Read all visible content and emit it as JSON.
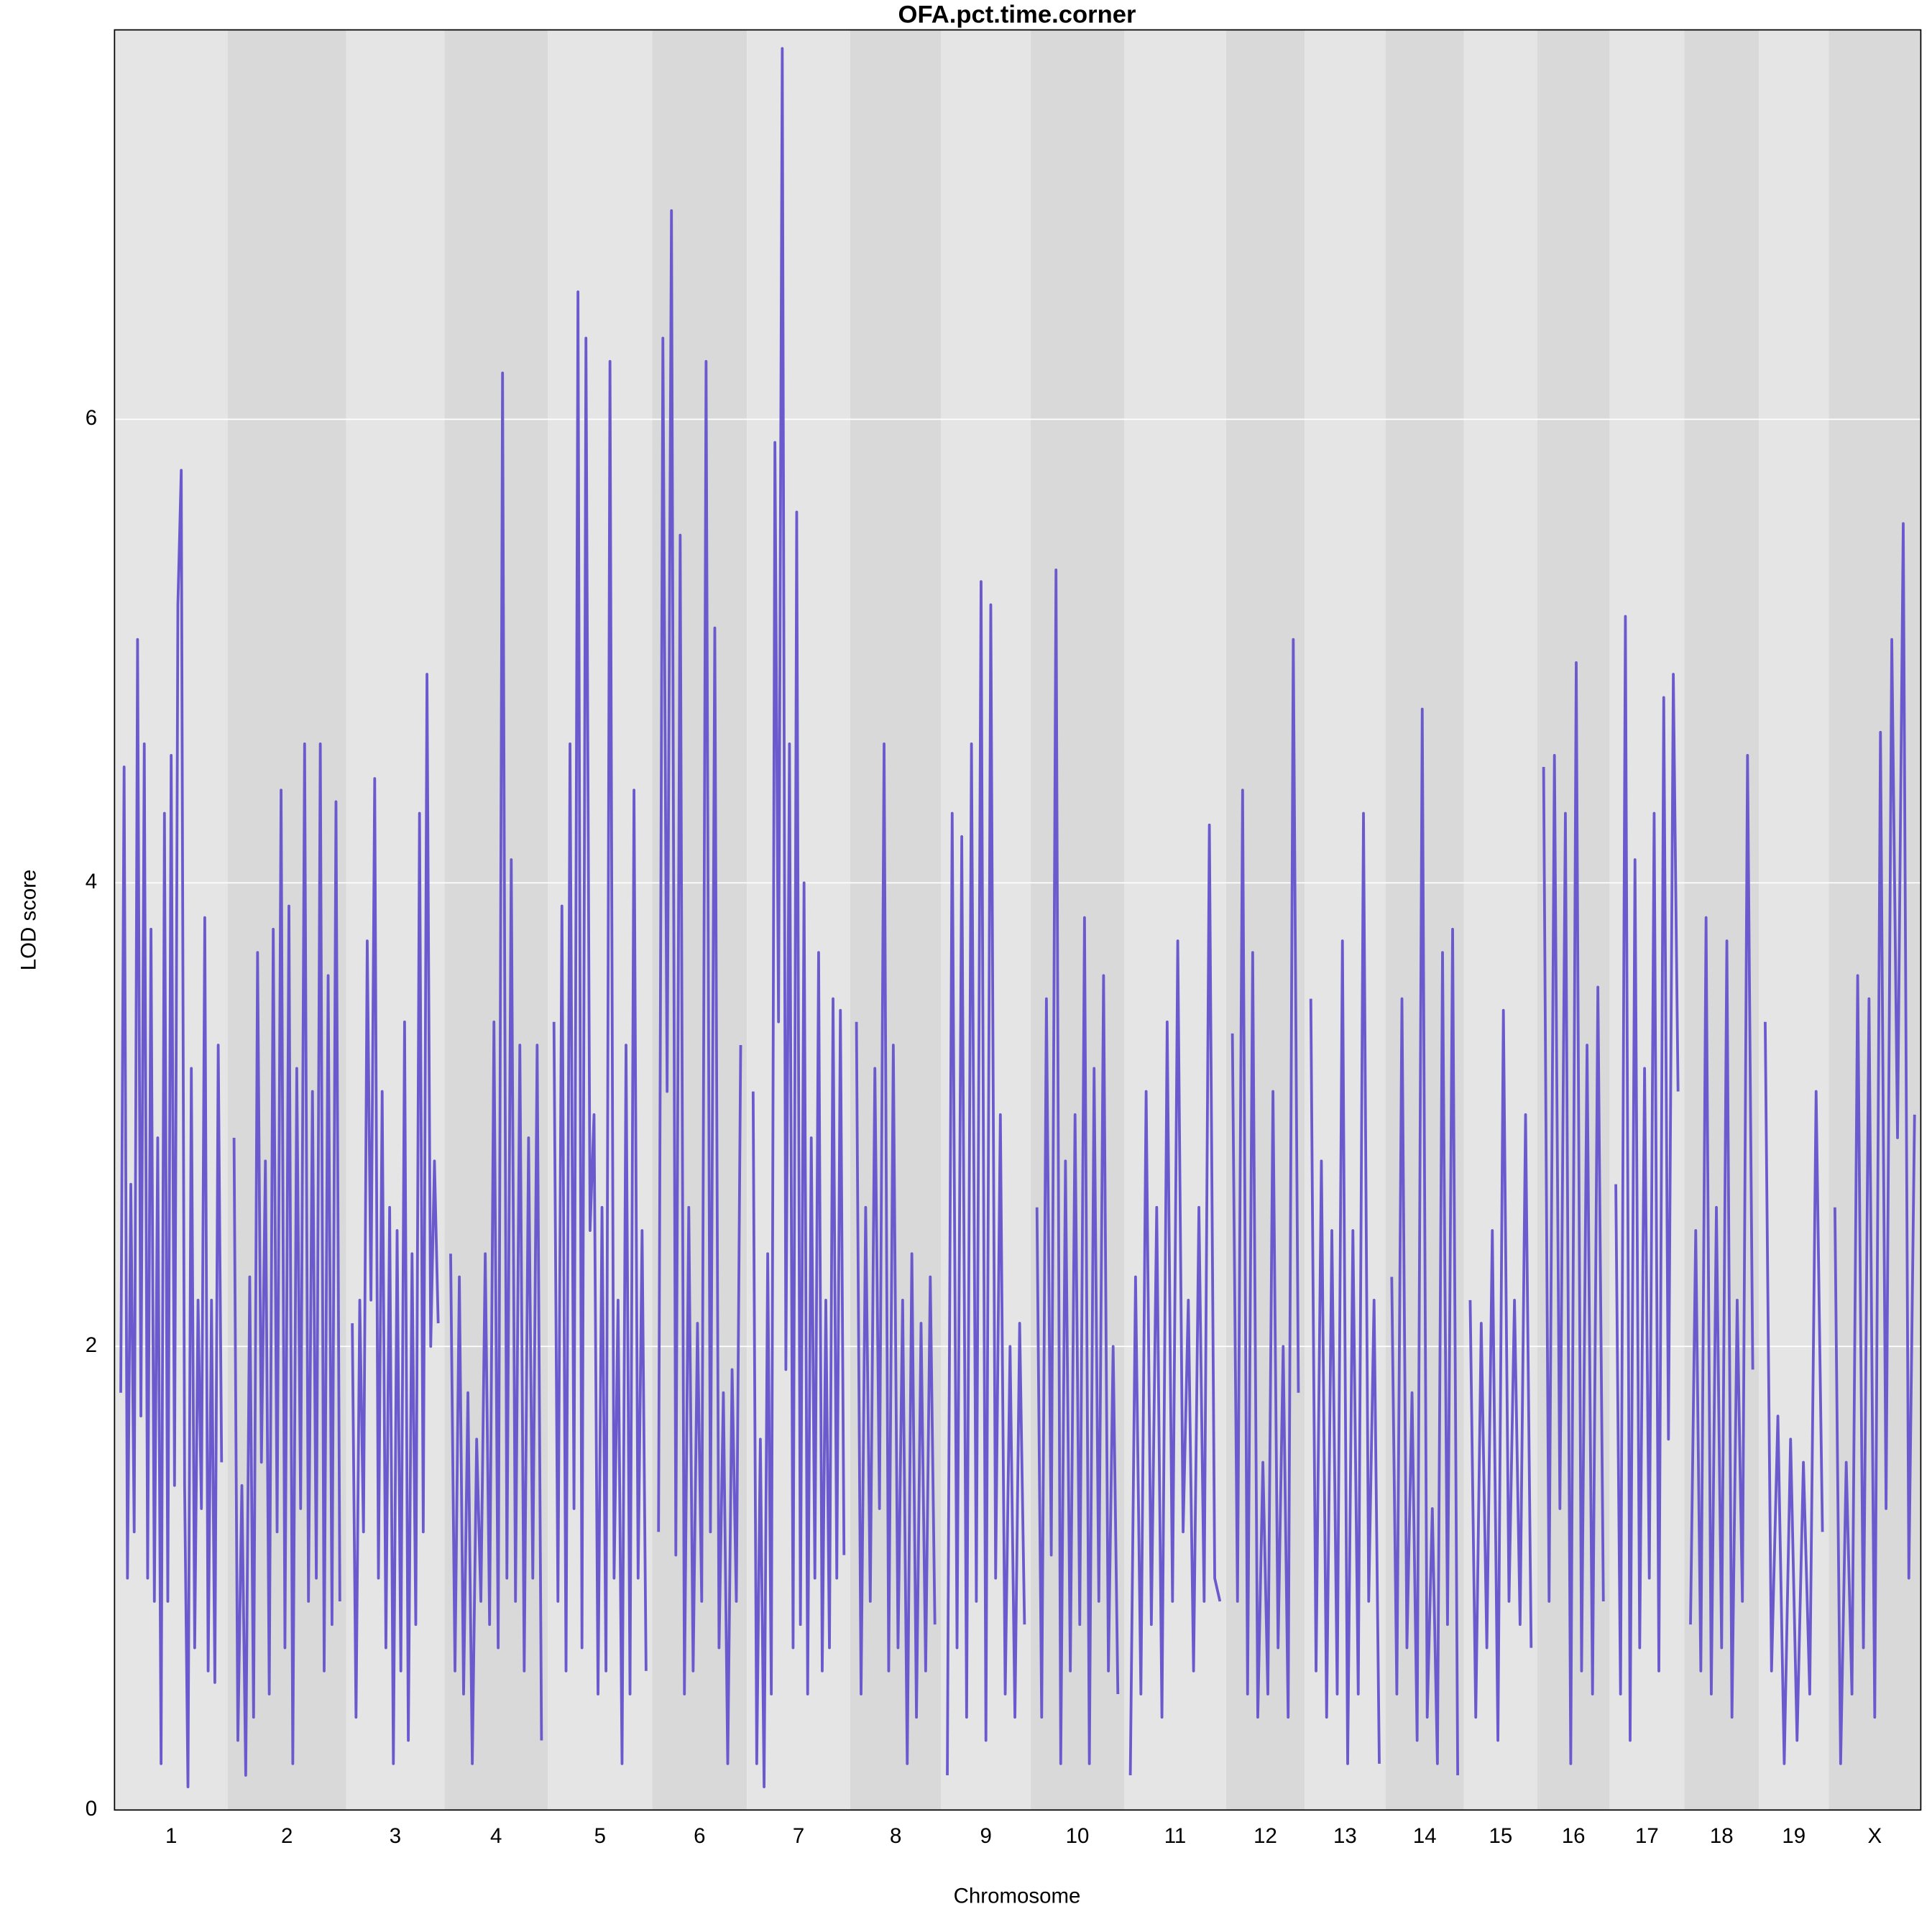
{
  "chart_data": {
    "type": "genome-scan",
    "title": "OFA.pct.time.corner",
    "x_label": "Chromosome",
    "y_label": "LOD score",
    "categories": [
      "1",
      "2",
      "3",
      "4",
      "5",
      "6",
      "7",
      "8",
      "9",
      "10",
      "11",
      "12",
      "13",
      "14",
      "15",
      "16",
      "17",
      "18",
      "19",
      "X"
    ],
    "ylim": [
      0,
      7.68
    ],
    "yticks": [
      0,
      2,
      4,
      6
    ],
    "grid": true,
    "band_colors": [
      "#e5e5e5",
      "#d9d9d9"
    ],
    "series": [
      {
        "color": "#6a5acd",
        "values": [
          [
            1.8,
            4.5,
            1.0,
            2.7,
            1.2,
            5.05,
            1.7,
            4.6,
            1.0,
            3.8,
            0.9,
            2.9,
            0.2,
            4.3,
            0.9,
            4.55,
            1.4,
            5.2,
            5.78,
            1.4,
            0.1,
            3.2,
            0.7,
            2.2,
            1.3,
            3.85,
            0.6,
            2.2,
            0.55,
            3.3,
            1.5
          ],
          [
            2.9,
            0.3,
            1.4,
            0.15,
            2.3,
            0.4,
            3.7,
            1.5,
            2.8,
            0.5,
            3.8,
            1.2,
            4.4,
            0.7,
            3.9,
            0.2,
            3.2,
            1.3,
            4.6,
            0.9,
            3.1,
            1.0,
            4.6,
            0.6,
            3.6,
            0.8,
            4.35,
            0.9
          ],
          [
            2.1,
            0.4,
            2.2,
            1.2,
            3.75,
            2.2,
            4.45,
            1.0,
            3.1,
            0.7,
            2.6,
            0.2,
            2.5,
            0.6,
            3.4,
            0.3,
            2.4,
            0.8,
            4.3,
            1.2,
            4.9,
            2.0,
            2.8,
            2.1
          ],
          [
            2.4,
            0.6,
            2.3,
            0.5,
            1.8,
            0.2,
            1.6,
            0.9,
            2.4,
            0.8,
            3.4,
            0.7,
            6.2,
            1.0,
            4.1,
            0.9,
            3.3,
            0.6,
            2.9,
            1.0,
            3.3,
            0.3
          ],
          [
            3.4,
            0.9,
            3.9,
            0.6,
            4.6,
            1.3,
            6.55,
            0.7,
            6.35,
            2.5,
            3.0,
            0.5,
            2.6,
            0.6,
            6.25,
            1.0,
            2.2,
            0.2,
            3.3,
            0.5,
            4.4,
            1.0,
            2.5,
            0.6
          ],
          [
            1.2,
            6.35,
            3.1,
            6.9,
            1.1,
            5.5,
            0.5,
            2.6,
            0.6,
            2.1,
            0.9,
            6.25,
            1.2,
            5.1,
            0.7,
            1.8,
            0.2,
            1.9,
            0.9,
            3.3
          ],
          [
            3.1,
            0.2,
            1.6,
            0.1,
            2.4,
            0.5,
            5.9,
            3.4,
            7.6,
            1.9,
            4.6,
            0.7,
            5.6,
            0.8,
            4.0,
            0.5,
            2.9,
            1.0,
            3.7,
            0.6,
            2.2,
            0.7,
            3.5,
            1.0,
            3.45,
            1.1
          ],
          [
            3.4,
            0.5,
            2.6,
            0.9,
            3.2,
            1.3,
            4.6,
            0.6,
            3.3,
            0.7,
            2.2,
            0.2,
            2.4,
            0.4,
            2.1,
            0.6,
            2.3,
            0.8
          ],
          [
            0.15,
            4.3,
            0.7,
            4.2,
            0.4,
            4.6,
            0.9,
            5.3,
            0.3,
            5.2,
            1.0,
            3.0,
            0.5,
            2.0,
            0.4,
            2.1,
            0.8
          ],
          [
            2.6,
            0.4,
            3.5,
            1.1,
            5.35,
            0.2,
            2.8,
            0.6,
            3.0,
            0.8,
            3.85,
            0.2,
            3.2,
            0.9,
            3.6,
            0.6,
            2.0,
            0.5
          ],
          [
            0.15,
            2.3,
            0.5,
            3.1,
            0.8,
            2.6,
            0.4,
            3.4,
            0.9,
            3.75,
            1.2,
            2.2,
            0.6,
            2.6,
            0.9,
            4.25,
            1.0,
            0.9
          ],
          [
            3.35,
            0.9,
            4.4,
            0.5,
            3.7,
            0.4,
            1.5,
            0.5,
            3.1,
            0.7,
            2.0,
            0.4,
            5.05,
            1.8
          ],
          [
            3.5,
            0.6,
            2.8,
            0.4,
            2.5,
            0.5,
            3.75,
            0.2,
            2.5,
            0.5,
            4.3,
            0.9,
            2.2,
            0.2
          ],
          [
            2.3,
            0.5,
            3.5,
            0.7,
            1.8,
            0.3,
            4.75,
            0.4,
            1.3,
            0.2,
            3.7,
            0.8,
            3.8,
            0.15
          ],
          [
            2.2,
            0.4,
            2.1,
            0.7,
            2.5,
            0.3,
            3.45,
            0.9,
            2.2,
            0.8,
            3.0,
            0.7
          ],
          [
            4.5,
            0.9,
            4.55,
            1.3,
            4.3,
            0.2,
            4.95,
            0.6,
            3.3,
            0.5,
            3.55,
            0.9
          ],
          [
            2.7,
            0.5,
            5.15,
            0.3,
            4.1,
            0.7,
            3.2,
            1.0,
            4.3,
            0.6,
            4.8,
            1.6,
            4.9,
            3.1
          ],
          [
            0.8,
            2.5,
            0.6,
            3.85,
            0.5,
            2.6,
            0.7,
            3.75,
            0.4,
            2.2,
            0.9,
            4.55,
            1.9
          ],
          [
            3.4,
            0.6,
            1.7,
            0.2,
            1.6,
            0.3,
            1.5,
            0.5,
            3.1,
            1.2
          ],
          [
            2.6,
            0.2,
            1.5,
            0.5,
            3.6,
            0.7,
            3.5,
            0.4,
            4.65,
            1.3,
            5.05,
            2.9,
            5.55,
            1.0,
            3.0
          ]
        ]
      }
    ]
  }
}
